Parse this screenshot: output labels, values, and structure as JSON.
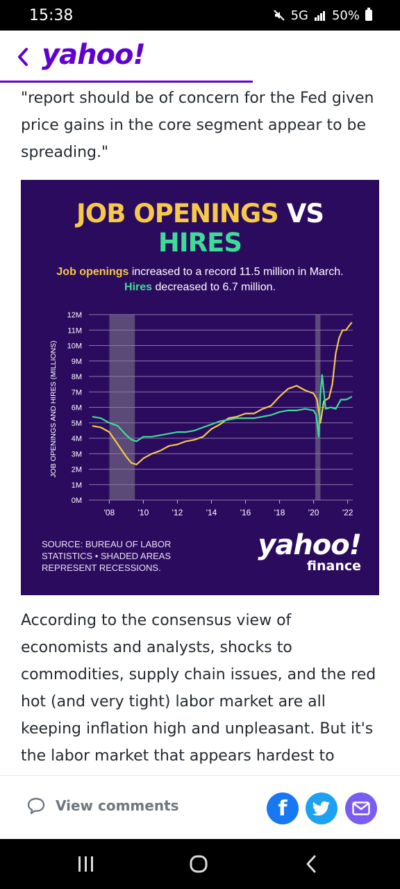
{
  "status_bar": {
    "time": "15:38",
    "network": "5G",
    "battery": "50%"
  },
  "header": {
    "logo": "yahoo!"
  },
  "article": {
    "para1": "\"report should be of concern for the Fed given price gains in the core segment appear to be spreading.\"",
    "para2": "According to the consensus view of economists and analysts, shocks to commodities, supply chain issues, and the red hot (and very tight) labor market are all keeping inflation high and unpleasant. But it's the labor market that appears hardest to vanquish."
  },
  "infographic": {
    "title_line1_a": "JOB OPENINGS",
    "title_line1_b": " VS",
    "title_line2": "HIRES",
    "subtitle_a": "Job openings",
    "subtitle_b": " increased to a record 11.5 million in March. ",
    "subtitle_c": "Hires",
    "subtitle_d": " decreased to 6.7 million.",
    "source": "SOURCE: BUREAU OF LABOR STATISTICS • SHADED AREAS REPRESENT RECESSIONS.",
    "brand_big": "yahoo!",
    "brand_small": "finance",
    "colors": {
      "openings": "#f7c948",
      "hires": "#3ddc97",
      "background": "#2b0b5e",
      "recession": "#5b4a78"
    }
  },
  "chart_data": {
    "type": "line",
    "ylabel": "JOB OPENINGS AND HIRES (MILLIONS)",
    "ylim": [
      0,
      12
    ],
    "xlim": [
      2006.8,
      2022.3
    ],
    "y_ticks": [
      "0M",
      "1M",
      "2M",
      "3M",
      "4M",
      "5M",
      "6M",
      "7M",
      "8M",
      "9M",
      "10M",
      "11M",
      "12M"
    ],
    "x_ticks": [
      {
        "label": "'08",
        "value": 2008
      },
      {
        "label": "'10",
        "value": 2010
      },
      {
        "label": "'12",
        "value": 2012
      },
      {
        "label": "'14",
        "value": 2014
      },
      {
        "label": "'16",
        "value": 2016
      },
      {
        "label": "'18",
        "value": 2018
      },
      {
        "label": "'20",
        "value": 2020
      },
      {
        "label": "'22",
        "value": 2022
      }
    ],
    "recessions": [
      [
        2008.0,
        2009.5
      ],
      [
        2020.1,
        2020.4
      ]
    ],
    "series": [
      {
        "key": "openings",
        "x": [
          2007.0,
          2007.5,
          2008.0,
          2008.5,
          2009.0,
          2009.3,
          2009.6,
          2010.0,
          2010.5,
          2011.0,
          2011.5,
          2012.0,
          2012.5,
          2013.0,
          2013.5,
          2014.0,
          2014.5,
          2015.0,
          2015.5,
          2016.0,
          2016.5,
          2017.0,
          2017.5,
          2018.0,
          2018.5,
          2019.0,
          2019.5,
          2020.0,
          2020.2,
          2020.4,
          2020.6,
          2020.9,
          2021.1,
          2021.3,
          2021.5,
          2021.7,
          2021.9,
          2022.1,
          2022.25
        ],
        "values": [
          4.8,
          4.7,
          4.4,
          3.6,
          2.8,
          2.4,
          2.3,
          2.7,
          3.0,
          3.2,
          3.5,
          3.6,
          3.8,
          3.9,
          4.1,
          4.6,
          4.9,
          5.3,
          5.4,
          5.6,
          5.6,
          5.9,
          6.1,
          6.7,
          7.2,
          7.4,
          7.1,
          6.9,
          6.5,
          5.0,
          6.4,
          6.6,
          7.5,
          9.5,
          10.5,
          11.0,
          11.0,
          11.3,
          11.5
        ]
      },
      {
        "key": "hires",
        "x": [
          2007.0,
          2007.5,
          2008.0,
          2008.5,
          2009.0,
          2009.3,
          2009.6,
          2010.0,
          2010.5,
          2011.0,
          2011.5,
          2012.0,
          2012.5,
          2013.0,
          2013.5,
          2014.0,
          2014.5,
          2015.0,
          2015.5,
          2016.0,
          2016.5,
          2017.0,
          2017.5,
          2018.0,
          2018.5,
          2019.0,
          2019.5,
          2020.0,
          2020.15,
          2020.3,
          2020.4,
          2020.5,
          2020.7,
          2021.0,
          2021.3,
          2021.6,
          2021.9,
          2022.1,
          2022.25
        ],
        "values": [
          5.4,
          5.3,
          5.0,
          4.8,
          4.2,
          3.9,
          3.8,
          4.1,
          4.1,
          4.2,
          4.3,
          4.4,
          4.4,
          4.5,
          4.7,
          4.9,
          5.1,
          5.2,
          5.3,
          5.3,
          5.3,
          5.4,
          5.5,
          5.7,
          5.8,
          5.8,
          5.9,
          5.8,
          5.5,
          4.1,
          6.8,
          8.1,
          5.9,
          6.0,
          5.9,
          6.5,
          6.5,
          6.6,
          6.7
        ]
      }
    ]
  },
  "bottom_bar": {
    "view_comments": "View comments"
  }
}
